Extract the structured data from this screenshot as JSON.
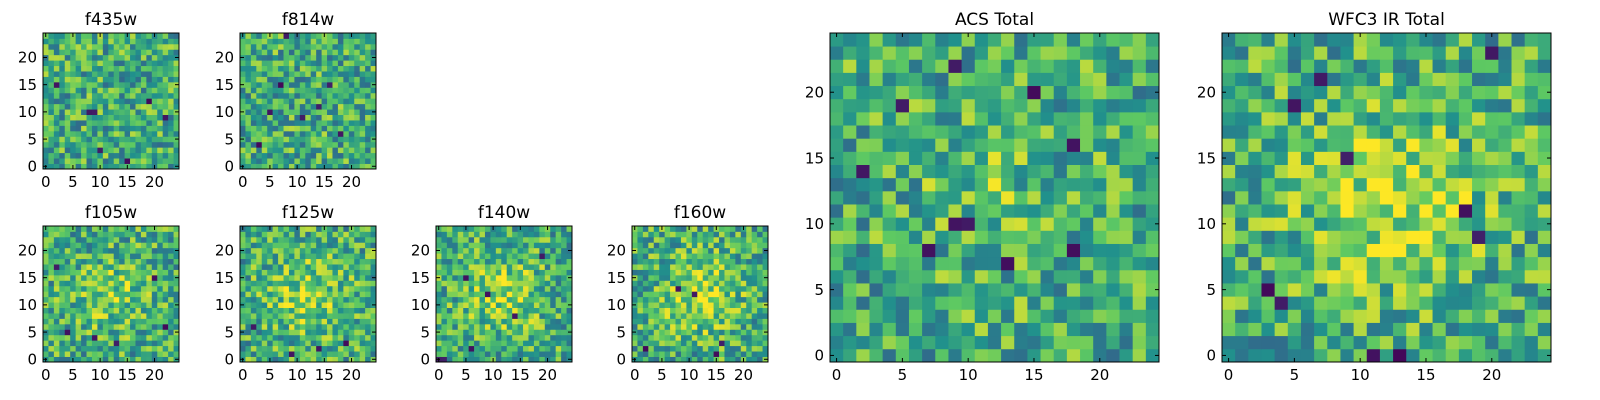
{
  "figure": {
    "panels": [
      {
        "title": "f435w",
        "xticks": [
          "0",
          "5",
          "10",
          "15",
          "20"
        ],
        "yticks": [
          "0",
          "5",
          "10",
          "15",
          "20"
        ]
      },
      {
        "title": "f814w",
        "xticks": [
          "0",
          "5",
          "10",
          "15",
          "20"
        ],
        "yticks": [
          "0",
          "5",
          "10",
          "15",
          "20"
        ]
      },
      {
        "title": "f105w",
        "xticks": [
          "0",
          "5",
          "10",
          "15",
          "20"
        ],
        "yticks": [
          "0",
          "5",
          "10",
          "15",
          "20"
        ]
      },
      {
        "title": "f125w",
        "xticks": [
          "0",
          "5",
          "10",
          "15",
          "20"
        ],
        "yticks": [
          "0",
          "5",
          "10",
          "15",
          "20"
        ]
      },
      {
        "title": "f140w",
        "xticks": [
          "0",
          "5",
          "10",
          "15",
          "20"
        ],
        "yticks": [
          "0",
          "5",
          "10",
          "15",
          "20"
        ]
      },
      {
        "title": "f160w",
        "xticks": [
          "0",
          "5",
          "10",
          "15",
          "20"
        ],
        "yticks": [
          "0",
          "5",
          "10",
          "15",
          "20"
        ]
      },
      {
        "title": "ACS Total",
        "xticks": [
          "0",
          "5",
          "10",
          "15",
          "20"
        ],
        "yticks": [
          "0",
          "5",
          "10",
          "15",
          "20"
        ]
      },
      {
        "title": "WFC3 IR Total",
        "xticks": [
          "0",
          "5",
          "10",
          "15",
          "20"
        ],
        "yticks": [
          "0",
          "5",
          "10",
          "15",
          "20"
        ]
      }
    ]
  },
  "chart_data": [
    {
      "type": "heatmap",
      "title": "f435w",
      "grid_size": [
        25,
        25
      ],
      "xlim": [
        0,
        24
      ],
      "ylim": [
        0,
        24
      ],
      "colormap": "viridis",
      "colors": [
        "#440154",
        "#3b528b",
        "#21918c",
        "#5ec962",
        "#fde725"
      ],
      "noise_seed": 11,
      "blobs": [],
      "dark_spots": [
        [
          8,
          10
        ],
        [
          9,
          10
        ],
        [
          19,
          12
        ],
        [
          10,
          3
        ],
        [
          2,
          15
        ],
        [
          15,
          1
        ],
        [
          22,
          9
        ]
      ]
    },
    {
      "type": "heatmap",
      "title": "f814w",
      "grid_size": [
        25,
        25
      ],
      "xlim": [
        0,
        24
      ],
      "ylim": [
        0,
        24
      ],
      "colormap": "viridis",
      "colors": [
        "#440154",
        "#3b528b",
        "#21918c",
        "#5ec962",
        "#fde725"
      ],
      "noise_seed": 23,
      "blobs": [],
      "dark_spots": [
        [
          7,
          15
        ],
        [
          5,
          10
        ],
        [
          11,
          9
        ],
        [
          18,
          6
        ],
        [
          8,
          24
        ],
        [
          14,
          11
        ],
        [
          3,
          4
        ],
        [
          16,
          15
        ]
      ]
    },
    {
      "type": "heatmap",
      "title": "f105w",
      "grid_size": [
        25,
        25
      ],
      "xlim": [
        0,
        24
      ],
      "ylim": [
        0,
        24
      ],
      "colormap": "viridis",
      "colors": [
        "#440154",
        "#3b528b",
        "#21918c",
        "#5ec962",
        "#fde725"
      ],
      "noise_seed": 37,
      "blobs": [
        [
          12,
          12,
          5,
          0.15
        ]
      ],
      "dark_spots": [
        [
          4,
          5
        ],
        [
          9,
          4
        ],
        [
          13,
          3
        ],
        [
          2,
          17
        ],
        [
          22,
          6
        ],
        [
          20,
          15
        ]
      ]
    },
    {
      "type": "heatmap",
      "title": "f125w",
      "grid_size": [
        25,
        25
      ],
      "xlim": [
        0,
        24
      ],
      "ylim": [
        0,
        24
      ],
      "colormap": "viridis",
      "colors": [
        "#440154",
        "#3b528b",
        "#21918c",
        "#5ec962",
        "#fde725"
      ],
      "noise_seed": 41,
      "blobs": [
        [
          12,
          12,
          5,
          0.2
        ]
      ],
      "dark_spots": [
        [
          9,
          1
        ],
        [
          19,
          3
        ],
        [
          14,
          2
        ],
        [
          2,
          6
        ]
      ]
    },
    {
      "type": "heatmap",
      "title": "f140w",
      "grid_size": [
        25,
        25
      ],
      "xlim": [
        0,
        24
      ],
      "ylim": [
        0,
        24
      ],
      "colormap": "viridis",
      "colors": [
        "#440154",
        "#3b528b",
        "#21918c",
        "#5ec962",
        "#fde725"
      ],
      "noise_seed": 53,
      "blobs": [
        [
          12,
          12,
          5,
          0.2
        ]
      ],
      "dark_spots": [
        [
          0,
          0
        ],
        [
          1,
          0
        ],
        [
          5,
          15
        ],
        [
          9,
          12
        ],
        [
          19,
          19
        ],
        [
          14,
          8
        ],
        [
          6,
          2
        ]
      ]
    },
    {
      "type": "heatmap",
      "title": "f160w",
      "grid_size": [
        25,
        25
      ],
      "xlim": [
        0,
        24
      ],
      "ylim": [
        0,
        24
      ],
      "colormap": "viridis",
      "colors": [
        "#440154",
        "#3b528b",
        "#21918c",
        "#5ec962",
        "#fde725"
      ],
      "noise_seed": 67,
      "blobs": [
        [
          12,
          12,
          5,
          0.25
        ]
      ],
      "dark_spots": [
        [
          15,
          1
        ],
        [
          16,
          3
        ],
        [
          8,
          13
        ],
        [
          11,
          12
        ],
        [
          2,
          2
        ]
      ]
    },
    {
      "type": "heatmap",
      "title": "ACS Total",
      "grid_size": [
        25,
        25
      ],
      "xlim": [
        0,
        24
      ],
      "ylim": [
        0,
        24
      ],
      "colormap": "viridis",
      "colors": [
        "#440154",
        "#3b528b",
        "#21918c",
        "#5ec962",
        "#fde725"
      ],
      "noise_seed": 79,
      "blobs": [
        [
          12,
          12,
          4,
          0.1
        ]
      ],
      "dark_spots": [
        [
          9,
          10
        ],
        [
          10,
          10
        ],
        [
          18,
          8
        ],
        [
          7,
          8
        ],
        [
          13,
          7
        ],
        [
          5,
          19
        ],
        [
          2,
          14
        ],
        [
          9,
          22
        ],
        [
          15,
          20
        ],
        [
          18,
          16
        ]
      ]
    },
    {
      "type": "heatmap",
      "title": "WFC3 IR Total",
      "grid_size": [
        25,
        25
      ],
      "xlim": [
        0,
        24
      ],
      "ylim": [
        0,
        24
      ],
      "colormap": "viridis",
      "colors": [
        "#440154",
        "#3b528b",
        "#21918c",
        "#5ec962",
        "#fde725"
      ],
      "noise_seed": 97,
      "blobs": [
        [
          12,
          12,
          5,
          0.25
        ]
      ],
      "dark_spots": [
        [
          9,
          15
        ],
        [
          18,
          11
        ],
        [
          19,
          9
        ],
        [
          5,
          19
        ],
        [
          3,
          5
        ],
        [
          4,
          4
        ],
        [
          11,
          0
        ],
        [
          7,
          21
        ],
        [
          20,
          23
        ],
        [
          13,
          0
        ]
      ]
    }
  ]
}
